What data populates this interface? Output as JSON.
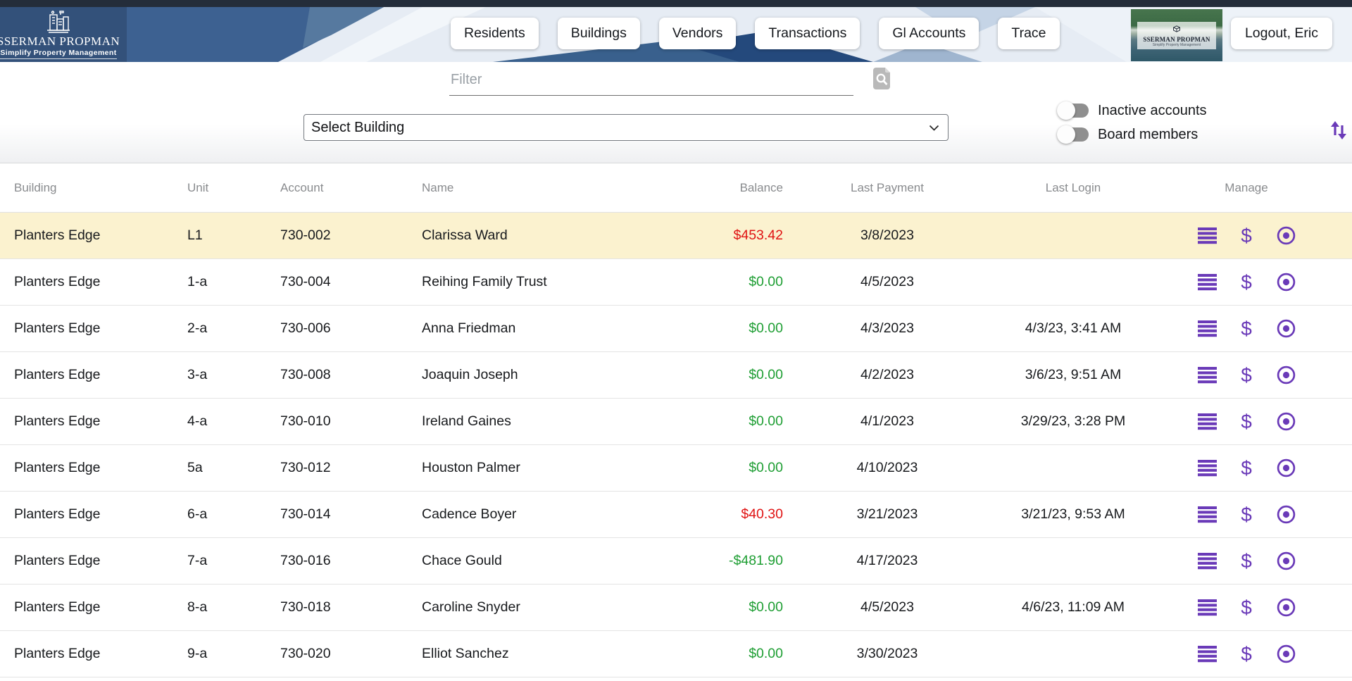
{
  "brand": {
    "name": "SSERMAN PROPMAN",
    "tagline": "Simplify Property Management"
  },
  "nav": {
    "items": [
      "Residents",
      "Buildings",
      "Vendors",
      "Transactions",
      "Gl Accounts",
      "Trace"
    ],
    "logout_label": "Logout, Eric"
  },
  "controls": {
    "filter_placeholder": "Filter",
    "building_select_value": "Select Building",
    "toggles": [
      {
        "label": "Inactive accounts",
        "on": false
      },
      {
        "label": "Board members",
        "on": false
      }
    ]
  },
  "table": {
    "columns": [
      "Building",
      "Unit",
      "Account",
      "Name",
      "Balance",
      "Last Payment",
      "Last Login",
      "Manage"
    ],
    "manage_icons": [
      {
        "name": "ledger-menu-icon",
        "glyph": "menu"
      },
      {
        "name": "payments-icon",
        "glyph": "$"
      },
      {
        "name": "record-icon",
        "glyph": "target"
      }
    ],
    "rows": [
      {
        "building": "Planters Edge",
        "unit": "L1",
        "account": "730-002",
        "name": "Clarissa Ward",
        "balance": "$453.42",
        "balance_color": "red",
        "last_payment": "3/8/2023",
        "last_login": "",
        "highlighted": true
      },
      {
        "building": "Planters Edge",
        "unit": "1-a",
        "account": "730-004",
        "name": "Reihing Family Trust",
        "balance": "$0.00",
        "balance_color": "green",
        "last_payment": "4/5/2023",
        "last_login": "",
        "highlighted": false
      },
      {
        "building": "Planters Edge",
        "unit": "2-a",
        "account": "730-006",
        "name": "Anna Friedman",
        "balance": "$0.00",
        "balance_color": "green",
        "last_payment": "4/3/2023",
        "last_login": "4/3/23, 3:41 AM",
        "highlighted": false
      },
      {
        "building": "Planters Edge",
        "unit": "3-a",
        "account": "730-008",
        "name": "Joaquin Joseph",
        "balance": "$0.00",
        "balance_color": "green",
        "last_payment": "4/2/2023",
        "last_login": "3/6/23, 9:51 AM",
        "highlighted": false
      },
      {
        "building": "Planters Edge",
        "unit": "4-a",
        "account": "730-010",
        "name": "Ireland Gaines",
        "balance": "$0.00",
        "balance_color": "green",
        "last_payment": "4/1/2023",
        "last_login": "3/29/23, 3:28 PM",
        "highlighted": false
      },
      {
        "building": "Planters Edge",
        "unit": "5a",
        "account": "730-012",
        "name": "Houston Palmer",
        "balance": "$0.00",
        "balance_color": "green",
        "last_payment": "4/10/2023",
        "last_login": "",
        "highlighted": false
      },
      {
        "building": "Planters Edge",
        "unit": "6-a",
        "account": "730-014",
        "name": "Cadence Boyer",
        "balance": "$40.30",
        "balance_color": "red",
        "last_payment": "3/21/2023",
        "last_login": "3/21/23, 9:53 AM",
        "highlighted": false
      },
      {
        "building": "Planters Edge",
        "unit": "7-a",
        "account": "730-016",
        "name": "Chace Gould",
        "balance": "-$481.90",
        "balance_color": "green",
        "last_payment": "4/17/2023",
        "last_login": "",
        "highlighted": false
      },
      {
        "building": "Planters Edge",
        "unit": "8-a",
        "account": "730-018",
        "name": "Caroline Snyder",
        "balance": "$0.00",
        "balance_color": "green",
        "last_payment": "4/5/2023",
        "last_login": "4/6/23, 11:09 AM",
        "highlighted": false
      },
      {
        "building": "Planters Edge",
        "unit": "9-a",
        "account": "730-020",
        "name": "Elliot Sanchez",
        "balance": "$0.00",
        "balance_color": "green",
        "last_payment": "3/30/2023",
        "last_login": "",
        "highlighted": false
      }
    ]
  },
  "colors": {
    "accent_purple": "#6a3ab8",
    "balance_red": "#e01313",
    "balance_green": "#1e9e33",
    "row_highlight": "#fbf2cf",
    "header_strip": "#242d3a"
  }
}
